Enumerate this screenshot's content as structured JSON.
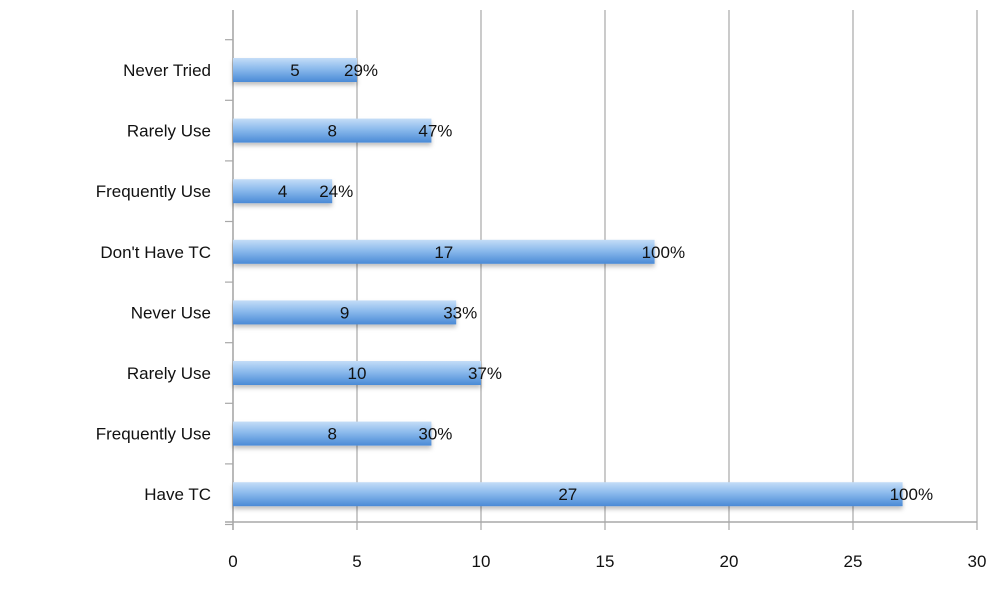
{
  "chart_data": {
    "type": "bar",
    "orientation": "horizontal",
    "categories": [
      "Never Tried",
      "Rarely Use",
      "Frequently Use",
      "Don't Have TC",
      "Never Use",
      "Rarely Use",
      "Frequently Use",
      "Have TC"
    ],
    "values": [
      5,
      8,
      4,
      17,
      9,
      10,
      8,
      27
    ],
    "percent_labels": [
      "29%",
      "47%",
      "24%",
      "100%",
      "33%",
      "37%",
      "30%",
      "100%"
    ],
    "xlim": [
      0,
      30
    ],
    "xticks": [
      "0",
      "5",
      "10",
      "15",
      "20",
      "25",
      "30"
    ],
    "grid": "vertical",
    "title": "",
    "xlabel": "",
    "ylabel": "",
    "colors": {
      "bar_top": "#a9cdf3",
      "bar_mid": "#7fb2ea",
      "bar_bottom": "#4d8fd8",
      "grid": "#a8a8a8"
    }
  }
}
